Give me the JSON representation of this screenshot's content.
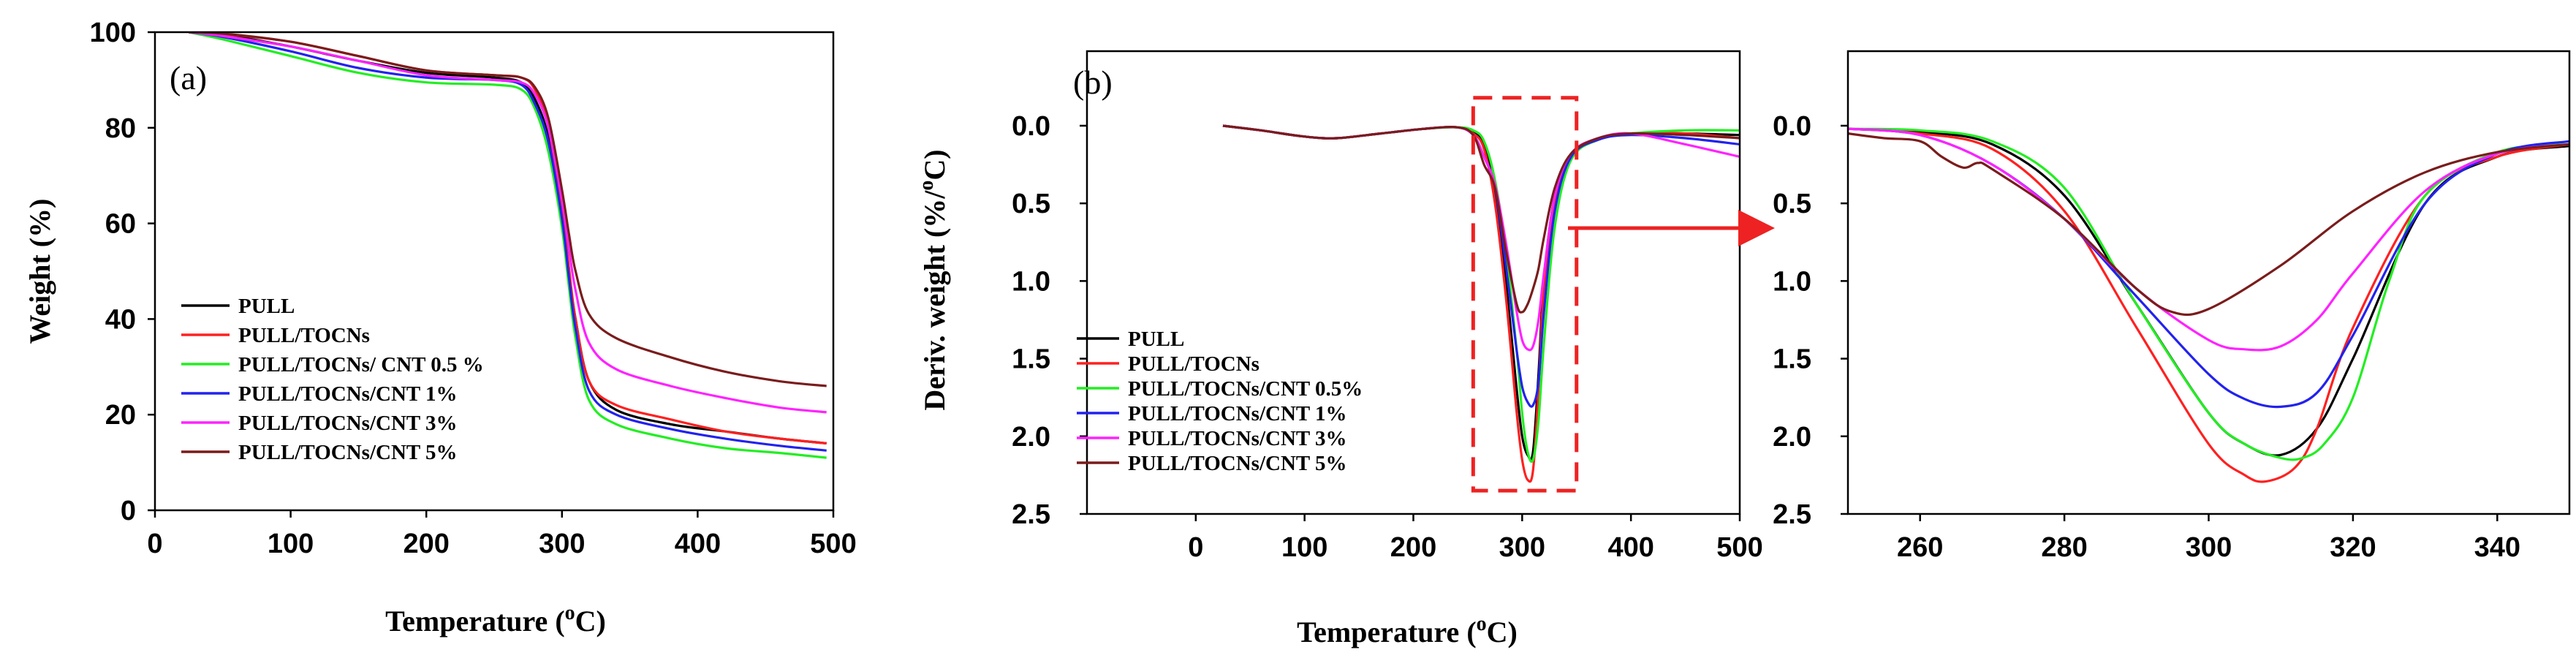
{
  "figure": {
    "accent_colors": {
      "PULL": "#000000",
      "PULL/TOCNs": "#ff2020",
      "CNT 0.5": "#22ee22",
      "CNT 1": "#2222ee",
      "CNT 3": "#ff22ff",
      "CNT 5": "#7a1c1c",
      "highlight": "#ee2222"
    }
  },
  "chart_data": [
    {
      "id": "a",
      "type": "line",
      "panel_label": "(a)",
      "title": "",
      "xlabel_main": "Temperature (",
      "xlabel_sup": "o",
      "xlabel_end": "C)",
      "ylabel": "Weight (%)",
      "xlim": [
        0,
        500
      ],
      "ylim": [
        0,
        100
      ],
      "xticks": [
        0,
        100,
        200,
        300,
        400,
        500
      ],
      "yticks": [
        0,
        20,
        40,
        60,
        80,
        100
      ],
      "legend_position": "lower-left",
      "series": [
        {
          "name": "PULL",
          "color": "#000000",
          "x": [
            25,
            50,
            100,
            150,
            200,
            250,
            270,
            280,
            290,
            300,
            305,
            310,
            320,
            340,
            380,
            420,
            460,
            495
          ],
          "y": [
            100,
            99.5,
            97,
            94,
            91.5,
            90.5,
            89.5,
            86,
            78,
            62,
            50,
            40,
            27,
            21,
            18,
            16.5,
            15,
            14
          ]
        },
        {
          "name": "PULL/TOCNs",
          "color": "#ff2020",
          "x": [
            25,
            50,
            100,
            150,
            200,
            250,
            270,
            280,
            290,
            300,
            305,
            310,
            320,
            340,
            380,
            420,
            460,
            495
          ],
          "y": [
            100,
            99.6,
            98,
            95,
            92,
            91,
            90.5,
            88,
            80,
            63,
            51,
            40,
            27,
            22,
            19,
            16.5,
            15,
            14
          ]
        },
        {
          "name": "PULL/TOCNs/ CNT 0.5 %",
          "color": "#22ee22",
          "x": [
            25,
            50,
            100,
            150,
            200,
            250,
            270,
            280,
            290,
            300,
            305,
            310,
            320,
            340,
            380,
            420,
            460,
            495
          ],
          "y": [
            100,
            98.5,
            95,
            91.5,
            89.5,
            89,
            88,
            84,
            75,
            59,
            47,
            36,
            23,
            18,
            15,
            13,
            12,
            11
          ]
        },
        {
          "name": "PULL/TOCNs/CNT 1%",
          "color": "#2222ee",
          "x": [
            25,
            50,
            100,
            150,
            200,
            250,
            270,
            280,
            290,
            300,
            305,
            310,
            320,
            340,
            380,
            420,
            460,
            495
          ],
          "y": [
            100,
            99,
            96,
            92.5,
            90.5,
            90,
            89,
            85,
            77,
            61,
            49,
            38,
            25,
            20,
            17,
            15,
            13.5,
            12.5
          ]
        },
        {
          "name": "PULL/TOCNs/CNT 3%",
          "color": "#ff22ff",
          "x": [
            25,
            50,
            100,
            150,
            200,
            250,
            270,
            280,
            290,
            300,
            305,
            310,
            320,
            340,
            380,
            420,
            460,
            495
          ],
          "y": [
            100,
            99.2,
            97,
            94,
            91,
            90,
            89.5,
            87,
            80,
            65,
            55,
            46,
            35,
            29.5,
            26,
            23.5,
            21.5,
            20.5
          ]
        },
        {
          "name": "PULL/TOCNs/CNT 5%",
          "color": "#7a1c1c",
          "x": [
            25,
            50,
            100,
            150,
            200,
            250,
            270,
            280,
            290,
            300,
            305,
            310,
            320,
            340,
            380,
            420,
            460,
            495
          ],
          "y": [
            100,
            99.7,
            98,
            95,
            92,
            91,
            90.5,
            88.5,
            82,
            67,
            58,
            50,
            41,
            36,
            32,
            29,
            27,
            26
          ]
        }
      ]
    },
    {
      "id": "b",
      "type": "line",
      "panel_label": "(b)",
      "title": "",
      "xlabel_main": "Temperature (",
      "xlabel_sup": "o",
      "xlabel_end": "C)",
      "ylabel_main": "Deriv. weight  (%/",
      "ylabel_sup": "o",
      "ylabel_end": "C)",
      "y_inverted": true,
      "xlim": [
        -100,
        500
      ],
      "ylim": [
        -0.48,
        2.5
      ],
      "xticks": [
        0,
        100,
        200,
        300,
        400,
        500
      ],
      "yticks": [
        0.0,
        0.5,
        1.0,
        1.5,
        2.0,
        2.5
      ],
      "ytick_labels": [
        "0.0",
        "0.5",
        "1.0",
        "1.5",
        "2.0",
        "2.5"
      ],
      "highlight_box_x": [
        255,
        350
      ],
      "highlight_box_y": [
        -0.18,
        2.35
      ],
      "legend_position": "lower-left",
      "series": [
        {
          "name": "PULL",
          "color": "#000000",
          "x": [
            25,
            60,
            100,
            130,
            170,
            210,
            240,
            255,
            265,
            275,
            285,
            295,
            300,
            305,
            310,
            315,
            320,
            330,
            345,
            370,
            400,
            450,
            500
          ],
          "y": [
            0.0,
            0.03,
            0.07,
            0.08,
            0.05,
            0.02,
            0.01,
            0.04,
            0.12,
            0.45,
            1.0,
            1.7,
            2.0,
            2.12,
            2.1,
            1.6,
            1.0,
            0.45,
            0.18,
            0.08,
            0.05,
            0.05,
            0.06
          ]
        },
        {
          "name": "PULL/TOCNs",
          "color": "#ff2020",
          "x": [
            25,
            60,
            100,
            130,
            170,
            210,
            240,
            255,
            265,
            275,
            285,
            295,
            300,
            305,
            310,
            315,
            320,
            330,
            345,
            370,
            400,
            450,
            500
          ],
          "y": [
            0.0,
            0.03,
            0.07,
            0.08,
            0.05,
            0.02,
            0.01,
            0.05,
            0.15,
            0.5,
            1.1,
            1.85,
            2.15,
            2.28,
            2.22,
            1.7,
            1.05,
            0.5,
            0.2,
            0.09,
            0.05,
            0.05,
            0.08
          ]
        },
        {
          "name": "PULL/TOCNs/CNT 0.5%",
          "color": "#22ee22",
          "x": [
            25,
            60,
            100,
            130,
            170,
            210,
            240,
            255,
            265,
            275,
            285,
            295,
            300,
            305,
            310,
            315,
            320,
            330,
            345,
            370,
            400,
            450,
            500
          ],
          "y": [
            0.0,
            0.03,
            0.07,
            0.08,
            0.05,
            0.02,
            0.01,
            0.03,
            0.1,
            0.35,
            0.8,
            1.45,
            1.85,
            2.1,
            2.15,
            1.9,
            1.4,
            0.65,
            0.22,
            0.09,
            0.05,
            0.03,
            0.03
          ]
        },
        {
          "name": "PULL/TOCNs/CNT 1%",
          "color": "#2222ee",
          "x": [
            25,
            60,
            100,
            130,
            170,
            210,
            240,
            255,
            265,
            275,
            285,
            295,
            300,
            305,
            310,
            315,
            320,
            330,
            345,
            370,
            400,
            450,
            500
          ],
          "y": [
            0.0,
            0.03,
            0.07,
            0.08,
            0.05,
            0.02,
            0.01,
            0.06,
            0.2,
            0.4,
            0.9,
            1.45,
            1.68,
            1.78,
            1.8,
            1.65,
            1.2,
            0.55,
            0.2,
            0.09,
            0.06,
            0.08,
            0.12
          ]
        },
        {
          "name": "PULL/TOCNs/CNT 3%",
          "color": "#ff22ff",
          "x": [
            25,
            60,
            100,
            130,
            170,
            210,
            240,
            255,
            265,
            275,
            285,
            295,
            300,
            305,
            310,
            315,
            320,
            330,
            345,
            370,
            400,
            450,
            500
          ],
          "y": [
            0.0,
            0.03,
            0.07,
            0.08,
            0.05,
            0.02,
            0.01,
            0.06,
            0.2,
            0.38,
            0.75,
            1.2,
            1.38,
            1.44,
            1.42,
            1.25,
            0.95,
            0.45,
            0.18,
            0.08,
            0.05,
            0.12,
            0.2
          ]
        },
        {
          "name": "PULL/TOCNs/CNT 5%",
          "color": "#7a1c1c",
          "x": [
            25,
            60,
            100,
            130,
            170,
            210,
            240,
            255,
            265,
            275,
            285,
            295,
            300,
            305,
            310,
            315,
            320,
            330,
            345,
            370,
            400,
            450,
            500
          ],
          "y": [
            0.0,
            0.03,
            0.07,
            0.08,
            0.05,
            0.02,
            0.01,
            0.06,
            0.25,
            0.4,
            0.8,
            1.15,
            1.2,
            1.15,
            1.05,
            0.92,
            0.72,
            0.4,
            0.18,
            0.08,
            0.05,
            0.06,
            0.08
          ]
        }
      ]
    },
    {
      "id": "zoom",
      "type": "line",
      "panel_label": "",
      "title": "",
      "y_inverted": true,
      "xlim": [
        250,
        350
      ],
      "ylim": [
        -0.48,
        2.5
      ],
      "xticks": [
        260,
        280,
        300,
        320,
        340
      ],
      "yticks": [
        0.0,
        0.5,
        1.0,
        1.5,
        2.0,
        2.5
      ],
      "ytick_labels": [
        "0.0",
        "0.5",
        "1.0",
        "1.5",
        "2.0",
        "2.5"
      ],
      "series": [
        {
          "name": "PULL",
          "color": "#000000",
          "x": [
            250,
            260,
            270,
            280,
            290,
            300,
            305,
            310,
            315,
            320,
            330,
            340,
            350
          ],
          "y": [
            0.02,
            0.04,
            0.12,
            0.45,
            1.15,
            1.85,
            2.05,
            2.12,
            1.95,
            1.5,
            0.5,
            0.2,
            0.13
          ]
        },
        {
          "name": "PULL/TOCNs",
          "color": "#ff2020",
          "x": [
            250,
            260,
            270,
            280,
            290,
            300,
            305,
            308,
            312,
            315,
            320,
            330,
            340,
            350
          ],
          "y": [
            0.02,
            0.05,
            0.15,
            0.55,
            1.3,
            2.05,
            2.25,
            2.29,
            2.2,
            1.95,
            1.3,
            0.45,
            0.2,
            0.12
          ]
        },
        {
          "name": "PULL/TOCNs/CNT 0.5%",
          "color": "#22ee22",
          "x": [
            250,
            260,
            270,
            280,
            290,
            300,
            305,
            310,
            313,
            316,
            320,
            325,
            330,
            340,
            350
          ],
          "y": [
            0.02,
            0.03,
            0.1,
            0.4,
            1.15,
            1.85,
            2.05,
            2.14,
            2.14,
            2.05,
            1.75,
            1.0,
            0.45,
            0.17,
            0.12
          ]
        },
        {
          "name": "PULL/TOCNs/CNT 1%",
          "color": "#2222ee",
          "x": [
            250,
            260,
            270,
            280,
            290,
            300,
            305,
            310,
            315,
            320,
            330,
            340,
            350
          ],
          "y": [
            0.02,
            0.06,
            0.25,
            0.6,
            1.1,
            1.6,
            1.76,
            1.81,
            1.72,
            1.35,
            0.5,
            0.18,
            0.1
          ]
        },
        {
          "name": "PULL/TOCNs/CNT 3%",
          "color": "#ff22ff",
          "x": [
            250,
            260,
            270,
            280,
            290,
            300,
            305,
            310,
            315,
            320,
            330,
            340,
            350
          ],
          "y": [
            0.02,
            0.06,
            0.25,
            0.6,
            1.05,
            1.38,
            1.44,
            1.42,
            1.25,
            0.95,
            0.42,
            0.18,
            0.12
          ]
        },
        {
          "name": "PULL/TOCNs/CNT 5%",
          "color": "#7a1c1c",
          "x": [
            250,
            255,
            260,
            263,
            266,
            268,
            270,
            280,
            290,
            295,
            300,
            310,
            320,
            330,
            340,
            350
          ],
          "y": [
            0.05,
            0.08,
            0.1,
            0.2,
            0.27,
            0.24,
            0.28,
            0.6,
            1.05,
            1.2,
            1.18,
            0.9,
            0.55,
            0.3,
            0.17,
            0.12
          ]
        }
      ]
    }
  ]
}
